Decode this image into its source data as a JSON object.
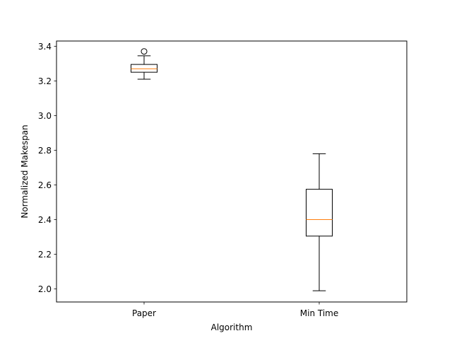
{
  "chart_data": {
    "type": "box",
    "xlabel": "Algorithm",
    "ylabel": "Normalized Makespan",
    "ylim": [
      1.925,
      3.43
    ],
    "yticks": [
      2.0,
      2.2,
      2.4,
      2.6,
      2.8,
      3.0,
      3.2,
      3.4
    ],
    "ytick_labels": [
      "2.0",
      "2.2",
      "2.4",
      "2.6",
      "2.8",
      "3.0",
      "3.2",
      "3.4"
    ],
    "categories": [
      "Paper",
      "Min Time"
    ],
    "boxes": [
      {
        "label": "Paper",
        "whisker_low": 3.21,
        "q1": 3.25,
        "median": 3.27,
        "q3": 3.295,
        "whisker_high": 3.345,
        "outliers": [
          3.37
        ]
      },
      {
        "label": "Min Time",
        "whisker_low": 1.99,
        "q1": 2.305,
        "median": 2.4,
        "q3": 2.575,
        "whisker_high": 2.78,
        "outliers": []
      }
    ],
    "grid": false,
    "legend": "none",
    "colors": {
      "box": "#000000",
      "median": "#ff7f0e",
      "outlier": "#000000"
    }
  }
}
